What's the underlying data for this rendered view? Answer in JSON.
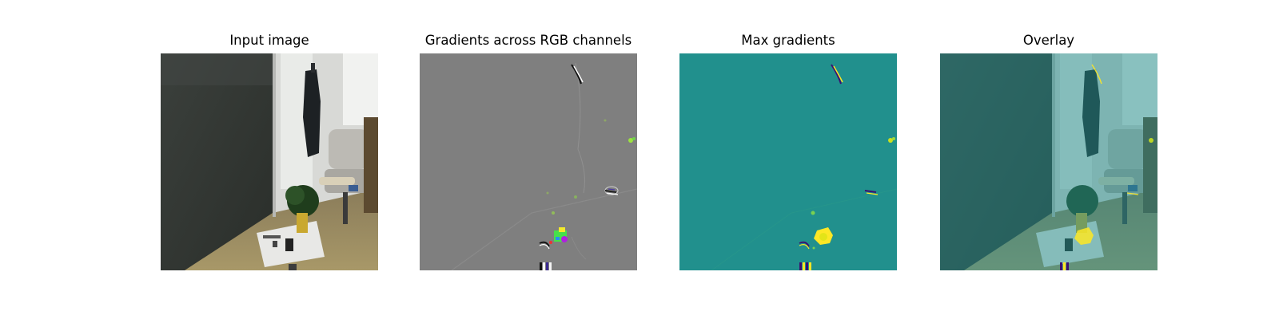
{
  "figure": {
    "panels": [
      {
        "title": "Input image",
        "content": "photo"
      },
      {
        "title": "Gradients across RGB channels",
        "content": "rgb-gradients"
      },
      {
        "title": "Max gradients",
        "content": "max-gradients"
      },
      {
        "title": "Overlay",
        "content": "overlay"
      }
    ],
    "colors": {
      "gradient_background": "#7f7f7f",
      "max_gradient_background": "#21908d",
      "max_gradient_hot": "#fde725",
      "overlay_tint": "#21908d"
    }
  }
}
